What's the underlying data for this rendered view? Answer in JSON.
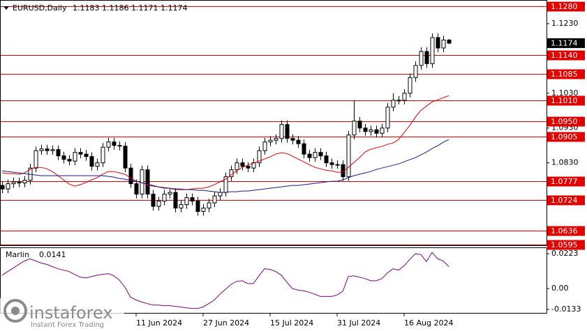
{
  "chart_data": {
    "type": "candlestick",
    "symbol": "EURUSD,Daily",
    "categories": [
      null,
      null,
      null,
      null,
      null,
      null,
      null,
      null,
      null,
      null,
      null,
      null,
      null,
      null,
      null,
      null,
      null,
      null,
      null,
      null,
      null,
      null,
      null,
      null,
      "11 Jun 2024",
      null,
      null,
      null,
      null,
      null,
      null,
      null,
      null,
      null,
      null,
      null,
      "27 Jun 2024",
      null,
      null,
      null,
      null,
      null,
      null,
      null,
      null,
      null,
      null,
      null,
      "15 Jul 2024",
      null,
      null,
      null,
      null,
      null,
      null,
      null,
      null,
      null,
      null,
      null,
      "31 Jul 2024",
      null,
      null,
      null,
      null,
      null,
      null,
      null,
      null,
      null,
      null,
      null,
      "16 Aug 2024",
      null,
      null,
      null,
      null,
      null,
      null,
      null,
      null
    ],
    "open": [
      1.0765,
      1.0755,
      1.077,
      1.0775,
      1.0772,
      1.078,
      1.0815,
      1.0865,
      1.087,
      1.0865,
      1.0868,
      1.085,
      1.084,
      1.0835,
      1.086,
      1.0855,
      1.0848,
      1.082,
      1.083,
      1.0875,
      1.089,
      1.088,
      1.0878,
      1.0815,
      1.077,
      1.074,
      1.081,
      1.074,
      1.0705,
      1.072,
      1.074,
      1.0745,
      1.07,
      1.071,
      1.073,
      1.072,
      1.069,
      1.07,
      1.0715,
      1.0735,
      1.0745,
      1.079,
      1.081,
      1.083,
      1.082,
      1.0815,
      1.083,
      1.0865,
      1.089,
      1.0895,
      1.09,
      1.094,
      1.09,
      1.0895,
      1.0885,
      1.0855,
      1.0845,
      1.086,
      1.085,
      1.083,
      1.0825,
      1.0825,
      1.079,
      1.091,
      1.095,
      1.093,
      1.092,
      1.0925,
      1.0915,
      1.093,
      1.099,
      1.101,
      1.101,
      1.103,
      1.1075,
      1.111,
      1.115,
      1.1115,
      1.119,
      1.116,
      1.1183
    ],
    "high": [
      1.0777,
      1.0782,
      1.0787,
      1.0787,
      1.0792,
      1.0827,
      1.0877,
      1.0882,
      1.0882,
      1.088,
      1.088,
      1.0862,
      1.0852,
      1.0872,
      1.0872,
      1.0867,
      1.086,
      1.0842,
      1.0887,
      1.0902,
      1.0902,
      1.0892,
      1.089,
      1.0827,
      1.0782,
      1.0822,
      1.0822,
      1.0752,
      1.0732,
      1.0752,
      1.0757,
      1.0757,
      1.0722,
      1.0742,
      1.0742,
      1.0732,
      1.0712,
      1.0727,
      1.0747,
      1.0757,
      1.0802,
      1.0822,
      1.0842,
      1.0842,
      1.0832,
      1.0842,
      1.0877,
      1.0902,
      1.0907,
      1.0912,
      1.0952,
      1.0952,
      1.0912,
      1.0907,
      1.0897,
      1.0867,
      1.0872,
      1.0872,
      1.0862,
      1.0842,
      1.0837,
      1.0837,
      1.0922,
      1.101,
      1.0962,
      1.0942,
      1.0937,
      1.0937,
      1.0942,
      1.1002,
      1.103,
      1.1022,
      1.1042,
      1.1087,
      1.1122,
      1.1162,
      1.1162,
      1.1202,
      1.1202,
      1.1195,
      1.1186
    ],
    "low": [
      1.0743,
      1.0743,
      1.0758,
      1.076,
      1.076,
      1.0768,
      1.0803,
      1.0853,
      1.0853,
      1.0853,
      1.0838,
      1.0828,
      1.0823,
      1.0823,
      1.0843,
      1.0836,
      1.0808,
      1.0808,
      1.0818,
      1.0863,
      1.0868,
      1.0866,
      1.0803,
      1.0758,
      1.0728,
      1.0728,
      1.0728,
      1.0693,
      1.0693,
      1.0708,
      1.0728,
      1.0688,
      1.0688,
      1.0698,
      1.0708,
      1.0678,
      1.0678,
      1.0688,
      1.0703,
      1.0723,
      1.0733,
      1.0778,
      1.0798,
      1.0808,
      1.0803,
      1.0803,
      1.0818,
      1.0853,
      1.0878,
      1.0883,
      1.0888,
      1.0888,
      1.0883,
      1.0873,
      1.0843,
      1.0833,
      1.0833,
      1.0838,
      1.0818,
      1.0813,
      1.0813,
      1.0778,
      1.0778,
      1.0898,
      1.0918,
      1.0908,
      1.0908,
      1.0903,
      1.0903,
      1.0918,
      1.0978,
      1.0998,
      1.0998,
      1.1018,
      1.1063,
      1.1098,
      1.1103,
      1.1103,
      1.1148,
      1.1148,
      1.1171
    ],
    "close": [
      1.0755,
      1.077,
      1.0775,
      1.0772,
      1.078,
      1.0815,
      1.0865,
      1.087,
      1.0865,
      1.0868,
      1.085,
      1.084,
      1.0835,
      1.086,
      1.0855,
      1.0848,
      1.082,
      1.083,
      1.0875,
      1.089,
      1.088,
      1.0878,
      1.0815,
      1.077,
      1.074,
      1.081,
      1.074,
      1.0705,
      1.072,
      1.074,
      1.0745,
      1.07,
      1.071,
      1.073,
      1.072,
      1.069,
      1.07,
      1.0715,
      1.0735,
      1.0745,
      1.079,
      1.081,
      1.083,
      1.082,
      1.0815,
      1.083,
      1.0865,
      1.089,
      1.0895,
      1.09,
      1.094,
      1.09,
      1.0895,
      1.0885,
      1.0855,
      1.0845,
      1.086,
      1.085,
      1.083,
      1.0825,
      1.0825,
      1.079,
      1.091,
      1.095,
      1.093,
      1.092,
      1.0925,
      1.0915,
      1.093,
      1.099,
      1.101,
      1.101,
      1.103,
      1.1075,
      1.111,
      1.115,
      1.1115,
      1.119,
      1.116,
      1.1183,
      1.1174
    ],
    "up_color": "#ffffff",
    "down_color": "#000000",
    "ylim": [
      1.0593,
      1.1298
    ],
    "yticks": [
      {
        "value": 1.123,
        "label": "1.1230"
      },
      {
        "value": 1.103,
        "label": "1.1030"
      },
      {
        "value": 1.093,
        "label": "1.0930"
      },
      {
        "value": 1.083,
        "label": "1.0830"
      }
    ],
    "levels": [
      {
        "value": 1.128,
        "label": "1.1280"
      },
      {
        "value": 1.114,
        "label": "1.1140"
      },
      1.1085,
      {
        "value": 1.101,
        "label": "1.1010"
      },
      {
        "value": 1.095,
        "label": "1.0950"
      },
      1.0905,
      1.0777,
      1.0724,
      1.0636,
      1.0595
    ],
    "levels_color": "#e00000",
    "current_price": 1.1174,
    "series": [
      {
        "color": "#e00000",
        "values": [
          1.0801,
          1.0799,
          1.0799,
          1.0797,
          1.0801,
          1.0811,
          1.0817,
          1.0817,
          1.0813,
          1.0805,
          1.0793,
          1.0781,
          1.0769,
          1.0763,
          1.0767,
          1.0773,
          1.0781,
          1.0787,
          1.0797,
          1.0805,
          1.0805,
          1.0801,
          1.0797,
          1.0787,
          1.0777,
          1.0773,
          1.0767,
          1.0763,
          1.0761,
          1.0759,
          1.0757,
          1.0753,
          1.0753,
          1.0753,
          1.0755,
          1.0757,
          1.0757,
          1.0761,
          1.0767,
          1.0775,
          1.0783,
          1.0795,
          1.0807,
          1.0817,
          1.0823,
          1.0829,
          1.0835,
          1.0841,
          1.0847,
          1.0855,
          1.0859,
          1.0857,
          1.0849,
          1.0841,
          1.0833,
          1.0825,
          1.0817,
          1.0813,
          1.0809,
          1.0807,
          1.0803,
          1.0803,
          1.0817,
          1.0831,
          1.0845,
          1.0861,
          1.0869,
          1.0873,
          1.0877,
          1.0883,
          1.0887,
          1.0897,
          1.0917,
          1.0937,
          1.0961,
          1.0981,
          1.0993,
          1.1005,
          1.1011,
          1.1017,
          1.1023
        ]
      },
      {
        "color": "#1a1a8c",
        "values": [
          1.0807,
          1.0805,
          1.0803,
          1.0801,
          1.0799,
          1.0797,
          1.0795,
          1.0793,
          1.0793,
          1.0793,
          1.0793,
          1.0793,
          1.0793,
          1.0793,
          1.0793,
          1.0793,
          1.0793,
          1.0793,
          1.0793,
          1.0791,
          1.0789,
          1.0785,
          1.0783,
          1.0779,
          1.0777,
          1.0773,
          1.0769,
          1.0765,
          1.0761,
          1.0757,
          1.0757,
          1.0755,
          1.0755,
          1.0753,
          1.0753,
          1.0751,
          1.0751,
          1.0749,
          1.0747,
          1.0745,
          1.0745,
          1.0747,
          1.0747,
          1.0749,
          1.0749,
          1.0751,
          1.0753,
          1.0755,
          1.0757,
          1.0759,
          1.0761,
          1.0763,
          1.0765,
          1.0765,
          1.0767,
          1.0769,
          1.0771,
          1.0773,
          1.0775,
          1.0777,
          1.0777,
          1.0781,
          1.0787,
          1.0793,
          1.0797,
          1.0801,
          1.0805,
          1.0811,
          1.0815,
          1.0819,
          1.0823,
          1.0827,
          1.0833,
          1.0839,
          1.0845,
          1.0853,
          1.0861,
          1.0871,
          1.0879,
          1.0889,
          1.0897
        ]
      }
    ],
    "indicator": {
      "name": "Marlin",
      "color": "#800080",
      "values": [
        0.0086,
        0.0109,
        0.0132,
        0.0155,
        0.0177,
        0.0191,
        0.0177,
        0.0164,
        0.0155,
        0.0141,
        0.0127,
        0.0118,
        0.0109,
        0.0091,
        0.0073,
        0.0068,
        0.0077,
        0.0086,
        0.0091,
        0.0096,
        0.0082,
        0.0055,
        0.0009,
        -0.0055,
        -0.0073,
        -0.0086,
        -0.0096,
        -0.0105,
        -0.0105,
        -0.0109,
        -0.0109,
        -0.0114,
        -0.0118,
        -0.0123,
        -0.0127,
        -0.0127,
        -0.0118,
        -0.0096,
        -0.0073,
        -0.0036,
        -0.0005,
        0.0027,
        0.0046,
        0.005,
        0.0032,
        0.0032,
        0.0082,
        0.0127,
        0.0123,
        0.0109,
        0.0086,
        0.0041,
        0,
        -0.0009,
        -0.0014,
        -0.0023,
        -0.0036,
        -0.005,
        -0.005,
        -0.005,
        -0.0041,
        -0.0018,
        0.0077,
        0.0082,
        0.0073,
        0.0064,
        0.005,
        0.005,
        0.0064,
        0.01,
        0.0127,
        0.0118,
        0.0146,
        0.0187,
        0.0223,
        0.0218,
        0.0173,
        0.0232,
        0.0191,
        0.0177,
        0.0141
      ],
      "ylim": [
        -0.016,
        0.0264
      ],
      "yticks": [
        0.0223,
        {
          "value": 0,
          "label": "0.00"
        },
        -0.0133
      ]
    },
    "watermark": {
      "name": "instaforex",
      "tagline": "Instant Forex Trading"
    }
  }
}
